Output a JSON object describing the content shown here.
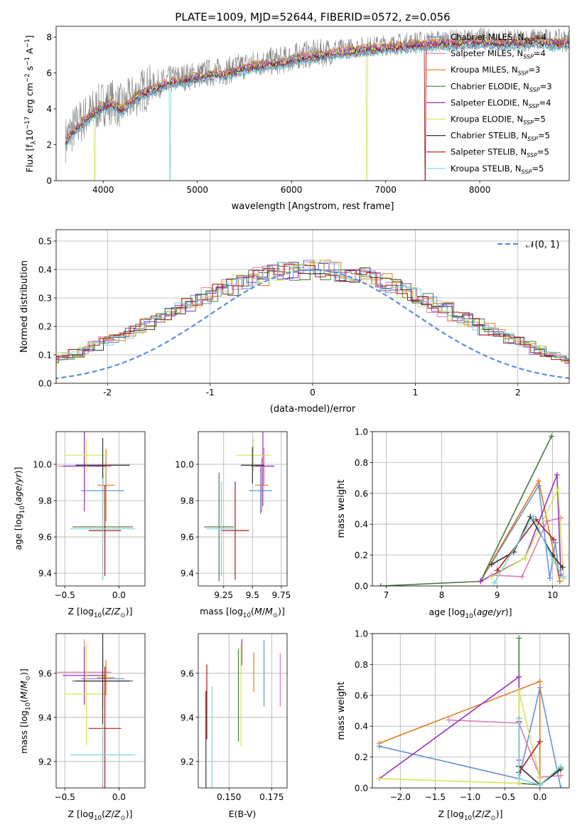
{
  "figure": {
    "title": "PLATE=1009, MJD=52644, FIBERID=0572, z=0.056"
  },
  "colors": {
    "Chabrier MILES": "#6a8fd8",
    "Salpeter MILES": "#e07ab8",
    "Kroupa MILES": "#e07b1c",
    "Chabrier ELODIE": "#4a7a4a",
    "Salpeter ELODIE": "#9b2fbf",
    "Kroupa ELODIE": "#d4e45a",
    "Chabrier STELIB": "#333333",
    "Salpeter STELIB": "#b01818",
    "Kroupa STELIB": "#7fd6d6",
    "data": "#808080",
    "normal": "#5b8ee0"
  },
  "chart_data": [
    {
      "id": "spectrum",
      "type": "line",
      "xlabel": "wavelength [Angstrom, rest frame]",
      "ylabel": "Flux [f_λ10^-17 erg cm^-2 s^-1 A^-1]",
      "xlim": [
        3500,
        8950
      ],
      "ylim": [
        0,
        8.6
      ],
      "xticks": [
        4000,
        5000,
        6000,
        7000,
        8000
      ],
      "yticks": [
        0,
        2,
        4,
        6,
        8
      ],
      "legend_position": "top-right",
      "legend": [
        {
          "name": "Chabrier MILES",
          "nssp": "4"
        },
        {
          "name": "Salpeter MILES",
          "nssp": "4"
        },
        {
          "name": "Kroupa MILES",
          "nssp": "3"
        },
        {
          "name": "Chabrier ELODIE",
          "nssp": "3"
        },
        {
          "name": "Salpeter ELODIE",
          "nssp": "4"
        },
        {
          "name": "Kroupa ELODIE",
          "nssp": "5"
        },
        {
          "name": "Chabrier STELIB",
          "nssp": "5"
        },
        {
          "name": "Salpeter STELIB",
          "nssp": "5"
        },
        {
          "name": "Kroupa STELIB",
          "nssp": "5"
        }
      ],
      "continuum": {
        "x": [
          3600,
          3700,
          3800,
          3900,
          4000,
          4100,
          4200,
          4300,
          4400,
          4500,
          4700,
          4900,
          5100,
          5300,
          5500,
          5700,
          5900,
          6100,
          6300,
          6500,
          6700,
          6900,
          7100,
          7300,
          7400,
          7600,
          7800,
          8000,
          8200,
          8400,
          8600,
          8800,
          8950
        ],
        "y": [
          2.3,
          3.0,
          3.5,
          3.9,
          4.3,
          4.4,
          4.1,
          4.6,
          5.0,
          5.2,
          5.6,
          5.8,
          6.0,
          6.1,
          6.4,
          6.6,
          6.7,
          7.0,
          7.1,
          7.3,
          7.4,
          7.5,
          7.6,
          7.7,
          7.7,
          7.8,
          7.8,
          7.9,
          7.8,
          7.8,
          7.9,
          7.8,
          7.8
        ]
      },
      "model_drops": [
        {
          "model": "Kroupa ELODIE",
          "x": 3910
        },
        {
          "model": "Kroupa STELIB",
          "x": 4710
        },
        {
          "model": "Kroupa ELODIE",
          "x": 6800
        },
        {
          "model": "Salpeter STELIB",
          "x": 7420
        }
      ]
    },
    {
      "id": "residuals",
      "type": "line",
      "xlabel": "(data-model)/error",
      "ylabel": "Normed distribution",
      "xlim": [
        -2.5,
        2.5
      ],
      "ylim": [
        0,
        0.54
      ],
      "xticks": [
        -2,
        -1,
        0,
        1,
        2
      ],
      "yticks": [
        0.0,
        0.1,
        0.2,
        0.3,
        0.4,
        0.5
      ],
      "grid": true,
      "legend_position": "top-right",
      "legend_label": "N(0,1)",
      "bin_width": 0.1,
      "histogram_envelope": [
        0.02,
        0.024,
        0.028,
        0.033,
        0.038,
        0.044,
        0.05,
        0.057,
        0.065,
        0.074,
        0.083,
        0.094,
        0.105,
        0.118,
        0.131,
        0.145,
        0.16,
        0.175,
        0.191,
        0.208,
        0.225,
        0.242,
        0.259,
        0.276,
        0.293,
        0.309,
        0.325,
        0.339,
        0.353,
        0.365,
        0.376,
        0.385,
        0.392,
        0.397,
        0.399,
        0.4,
        0.399,
        0.397,
        0.392,
        0.385,
        0.376,
        0.365,
        0.353,
        0.339,
        0.325,
        0.309,
        0.293,
        0.276,
        0.259,
        0.242,
        0.225,
        0.208,
        0.191,
        0.175,
        0.16,
        0.145,
        0.131,
        0.118,
        0.105,
        0.094,
        0.083,
        0.074,
        0.065,
        0.057,
        0.05,
        0.044,
        0.038,
        0.033,
        0.028,
        0.024,
        0.02
      ]
    },
    {
      "id": "age_vs_Z",
      "type": "scatter",
      "xlabel": "Z [log10(Z/Z⊙)]",
      "ylabel": "age [log10(age/yr)]",
      "xlim": [
        -0.58,
        0.24
      ],
      "ylim": [
        9.33,
        10.18
      ],
      "xticks": [
        -0.5,
        0.0
      ],
      "xtick_labels": [
        "−0.5",
        "0.0"
      ],
      "yticks": [
        9.4,
        9.6,
        9.8,
        10.0
      ],
      "grid": true,
      "points": [
        {
          "model": "Chabrier MILES",
          "x": -0.15,
          "xerr": 0.2,
          "y": 9.855,
          "yerr": 0.16
        },
        {
          "model": "Salpeter MILES",
          "x": -0.32,
          "xerr": 0.25,
          "y": 9.99,
          "yerr": 0.17
        },
        {
          "model": "Kroupa MILES",
          "x": -0.12,
          "xerr": 0.08,
          "y": 9.885,
          "yerr": 0.2
        },
        {
          "model": "Chabrier ELODIE",
          "x": -0.15,
          "xerr": 0.28,
          "y": 9.655,
          "yerr": 0.29
        },
        {
          "model": "Salpeter ELODIE",
          "x": -0.32,
          "xerr": 0.2,
          "y": 9.99,
          "yerr": 0.25
        },
        {
          "model": "Kroupa ELODIE",
          "x": -0.3,
          "xerr": 0.2,
          "y": 10.05,
          "yerr": 0.09
        },
        {
          "model": "Chabrier STELIB",
          "x": -0.15,
          "xerr": 0.25,
          "y": 9.995,
          "yerr": 0.15
        },
        {
          "model": "Salpeter STELIB",
          "x": -0.13,
          "xerr": 0.15,
          "y": 9.635,
          "yerr": 0.25
        },
        {
          "model": "Kroupa STELIB",
          "x": -0.15,
          "xerr": 0.3,
          "y": 9.645,
          "yerr": 0.28
        }
      ]
    },
    {
      "id": "age_vs_mass",
      "type": "scatter",
      "xlabel": "mass [log10(M/M⊙)]",
      "ylabel": "",
      "xlim": [
        9.03,
        9.8
      ],
      "ylim": [
        9.33,
        10.18
      ],
      "xticks": [
        9.25,
        9.5,
        9.75
      ],
      "yticks": [
        9.4,
        9.6,
        9.8,
        10.0
      ],
      "grid": true,
      "points": [
        {
          "model": "Chabrier MILES",
          "x": 9.57,
          "xerr": 0.1,
          "y": 9.855,
          "yerr": 0.13
        },
        {
          "model": "Salpeter MILES",
          "x": 9.6,
          "xerr": 0.08,
          "y": 9.99,
          "yerr": 0.1
        },
        {
          "model": "Kroupa MILES",
          "x": 9.58,
          "xerr": 0.06,
          "y": 9.885,
          "yerr": 0.15
        },
        {
          "model": "Chabrier ELODIE",
          "x": 9.21,
          "xerr": 0.13,
          "y": 9.655,
          "yerr": 0.3
        },
        {
          "model": "Salpeter ELODIE",
          "x": 9.59,
          "xerr": 0.1,
          "y": 9.99,
          "yerr": 0.22
        },
        {
          "model": "Kroupa ELODIE",
          "x": 9.51,
          "xerr": 0.15,
          "y": 10.05,
          "yerr": 0.09
        },
        {
          "model": "Chabrier STELIB",
          "x": 9.5,
          "xerr": 0.1,
          "y": 9.995,
          "yerr": 0.1
        },
        {
          "model": "Salpeter STELIB",
          "x": 9.35,
          "xerr": 0.12,
          "y": 9.635,
          "yerr": 0.27
        },
        {
          "model": "Kroupa STELIB",
          "x": 9.23,
          "xerr": 0.13,
          "y": 9.645,
          "yerr": 0.26
        }
      ]
    },
    {
      "id": "weight_vs_age",
      "type": "line",
      "xlabel": "age [log10(age/yr)]",
      "ylabel": "mass weight",
      "xlim": [
        6.75,
        10.3
      ],
      "ylim": [
        0,
        1.0
      ],
      "xticks": [
        7,
        8,
        9,
        10
      ],
      "yticks": [
        0.0,
        0.2,
        0.4,
        0.6,
        0.8,
        1.0
      ],
      "grid": true,
      "series": [
        {
          "model": "Chabrier MILES",
          "x": [
            8.7,
            9.75,
            9.95,
            10.05,
            10.13
          ],
          "y": [
            0.03,
            0.65,
            0.05,
            0.28,
            0.03
          ]
        },
        {
          "model": "Salpeter MILES",
          "x": [
            8.9,
            9.45,
            9.9,
            10.15
          ],
          "y": [
            0.07,
            0.06,
            0.42,
            0.44
          ]
        },
        {
          "model": "Kroupa MILES",
          "x": [
            8.7,
            9.75,
            10.13
          ],
          "y": [
            0.03,
            0.68,
            0.03
          ]
        },
        {
          "model": "Chabrier ELODIE",
          "x": [
            6.9,
            8.7,
            9.98
          ],
          "y": [
            0.0,
            0.03,
            0.97
          ]
        },
        {
          "model": "Salpeter ELODIE",
          "x": [
            8.7,
            9.5,
            10.08,
            10.15
          ],
          "y": [
            0.03,
            0.18,
            0.72,
            0.07
          ]
        },
        {
          "model": "Kroupa ELODIE",
          "x": [
            8.9,
            9.5,
            10.1,
            10.2
          ],
          "y": [
            0.06,
            0.18,
            0.63,
            0.05
          ]
        },
        {
          "model": "Chabrier STELIB",
          "x": [
            8.9,
            9.3,
            9.6,
            10.0,
            10.18
          ],
          "y": [
            0.14,
            0.22,
            0.45,
            0.2,
            0.12
          ]
        },
        {
          "model": "Salpeter STELIB",
          "x": [
            9.0,
            9.7,
            10.02
          ],
          "y": [
            0.1,
            0.43,
            0.3
          ]
        },
        {
          "model": "Kroupa STELIB",
          "x": [
            8.95,
            9.65,
            10.0,
            10.2
          ],
          "y": [
            0.02,
            0.45,
            0.17,
            0.06
          ]
        }
      ]
    },
    {
      "id": "mass_vs_Z",
      "type": "scatter",
      "xlabel": "Z [log10(Z/Z⊙)]",
      "ylabel": "mass [log10(M/M⊙)]",
      "xlim": [
        -0.58,
        0.24
      ],
      "ylim": [
        9.08,
        9.78
      ],
      "xticks": [
        -0.5,
        0.0
      ],
      "xtick_labels": [
        "−0.5",
        "0.0"
      ],
      "yticks": [
        9.2,
        9.4,
        9.6
      ],
      "grid": true,
      "points": [
        {
          "model": "Chabrier MILES",
          "x": -0.15,
          "xerr": 0.2,
          "y": 9.575,
          "yerr": 0.07
        },
        {
          "model": "Salpeter MILES",
          "x": -0.32,
          "xerr": 0.25,
          "y": 9.605,
          "yerr": 0.15
        },
        {
          "model": "Kroupa MILES",
          "x": -0.12,
          "xerr": 0.08,
          "y": 9.58,
          "yerr": 0.08
        },
        {
          "model": "Chabrier ELODIE",
          "x": -0.15,
          "xerr": 0.28,
          "y": 9.565,
          "yerr": 0.12
        },
        {
          "model": "Salpeter ELODIE",
          "x": -0.32,
          "xerr": 0.2,
          "y": 9.59,
          "yerr": 0.13
        },
        {
          "model": "Kroupa ELODIE",
          "x": -0.3,
          "xerr": 0.2,
          "y": 9.505,
          "yerr": 0.23
        },
        {
          "model": "Chabrier STELIB",
          "x": -0.15,
          "xerr": 0.25,
          "y": 9.565,
          "yerr": 0.48
        },
        {
          "model": "Salpeter STELIB",
          "x": -0.13,
          "xerr": 0.15,
          "y": 9.35,
          "yerr": 0.28
        },
        {
          "model": "Kroupa STELIB",
          "x": -0.15,
          "xerr": 0.3,
          "y": 9.23,
          "yerr": 0.14
        }
      ]
    },
    {
      "id": "mass_vs_ebv",
      "type": "scatter",
      "xlabel": "E(B-V)",
      "ylabel": "",
      "xlim": [
        0.132,
        0.184
      ],
      "ylim": [
        9.08,
        9.78
      ],
      "xticks": [
        0.15,
        0.175
      ],
      "xtick_labels": [
        "0.150",
        "0.175"
      ],
      "yticks": [
        9.2,
        9.4,
        9.6
      ],
      "grid": true,
      "points": [
        {
          "model": "Chabrier MILES",
          "x": 0.1705,
          "xerr": 0,
          "y": 9.6,
          "yerr": 0.15
        },
        {
          "model": "Salpeter MILES",
          "x": 0.18,
          "xerr": 0,
          "y": 9.57,
          "yerr": 0.12
        },
        {
          "model": "Kroupa MILES",
          "x": 0.1645,
          "xerr": 0,
          "y": 9.605,
          "yerr": 0.09
        },
        {
          "model": "Chabrier ELODIE",
          "x": 0.1555,
          "xerr": 0,
          "y": 9.5,
          "yerr": 0.21
        },
        {
          "model": "Salpeter ELODIE",
          "x": 0.1575,
          "xerr": 0,
          "y": 9.695,
          "yerr": 0.06
        },
        {
          "model": "Kroupa ELODIE",
          "x": 0.157,
          "xerr": 0,
          "y": 9.5,
          "yerr": 0.23
        },
        {
          "model": "Chabrier STELIB",
          "x": 0.1365,
          "xerr": 0,
          "y": 9.3,
          "yerr": 0.22
        },
        {
          "model": "Salpeter STELIB",
          "x": 0.137,
          "xerr": 0,
          "y": 9.47,
          "yerr": 0.17
        },
        {
          "model": "Kroupa STELIB",
          "x": 0.14,
          "xerr": 0,
          "y": 9.31,
          "yerr": 0.23
        }
      ]
    },
    {
      "id": "weight_vs_Z",
      "type": "line",
      "xlabel": "Z [log10(Z/Z⊙)]",
      "ylabel": "mass weight",
      "xlim": [
        -2.4,
        0.42
      ],
      "ylim": [
        0,
        1.0
      ],
      "xticks": [
        -2.0,
        -1.5,
        -1.0,
        -0.5,
        0.0
      ],
      "xtick_labels": [
        "−2.0",
        "−1.5",
        "−1.0",
        "−0.5",
        "0.0"
      ],
      "yticks": [
        0.0,
        0.2,
        0.4,
        0.6,
        0.8,
        1.0
      ],
      "grid": true,
      "series": [
        {
          "model": "Chabrier MILES",
          "x": [
            -2.3,
            -0.3,
            0.0,
            0.3
          ],
          "y": [
            0.27,
            0.06,
            0.65,
            0.0
          ]
        },
        {
          "model": "Salpeter MILES",
          "x": [
            -1.3,
            -0.3,
            0.0,
            0.3
          ],
          "y": [
            0.44,
            0.42,
            0.07,
            0.08
          ]
        },
        {
          "model": "Kroupa MILES",
          "x": [
            -2.3,
            0.0,
            0.0
          ],
          "y": [
            0.29,
            0.69,
            0.02
          ]
        },
        {
          "model": "Chabrier ELODIE",
          "x": [
            -0.3,
            -0.3,
            0.0,
            0.3
          ],
          "y": [
            0.97,
            0.03,
            0.02,
            0.13
          ]
        },
        {
          "model": "Salpeter ELODIE",
          "x": [
            -2.3,
            -0.3,
            -0.3
          ],
          "y": [
            0.06,
            0.72,
            0.18
          ]
        },
        {
          "model": "Kroupa ELODIE",
          "x": [
            -2.3,
            -0.3,
            -0.3,
            0.0
          ],
          "y": [
            0.06,
            0.03,
            0.63,
            0.06
          ]
        },
        {
          "model": "Chabrier STELIB",
          "x": [
            -0.3,
            -0.3,
            0.0,
            0.3
          ],
          "y": [
            0.45,
            0.14,
            0.02,
            0.12
          ]
        },
        {
          "model": "Salpeter STELIB",
          "x": [
            -0.3,
            -0.3,
            0.0
          ],
          "y": [
            0.43,
            0.1,
            0.3
          ]
        },
        {
          "model": "Kroupa STELIB",
          "x": [
            -0.3,
            -0.3,
            0.0,
            0.3
          ],
          "y": [
            0.45,
            0.06,
            0.02,
            0.14
          ]
        }
      ]
    }
  ]
}
